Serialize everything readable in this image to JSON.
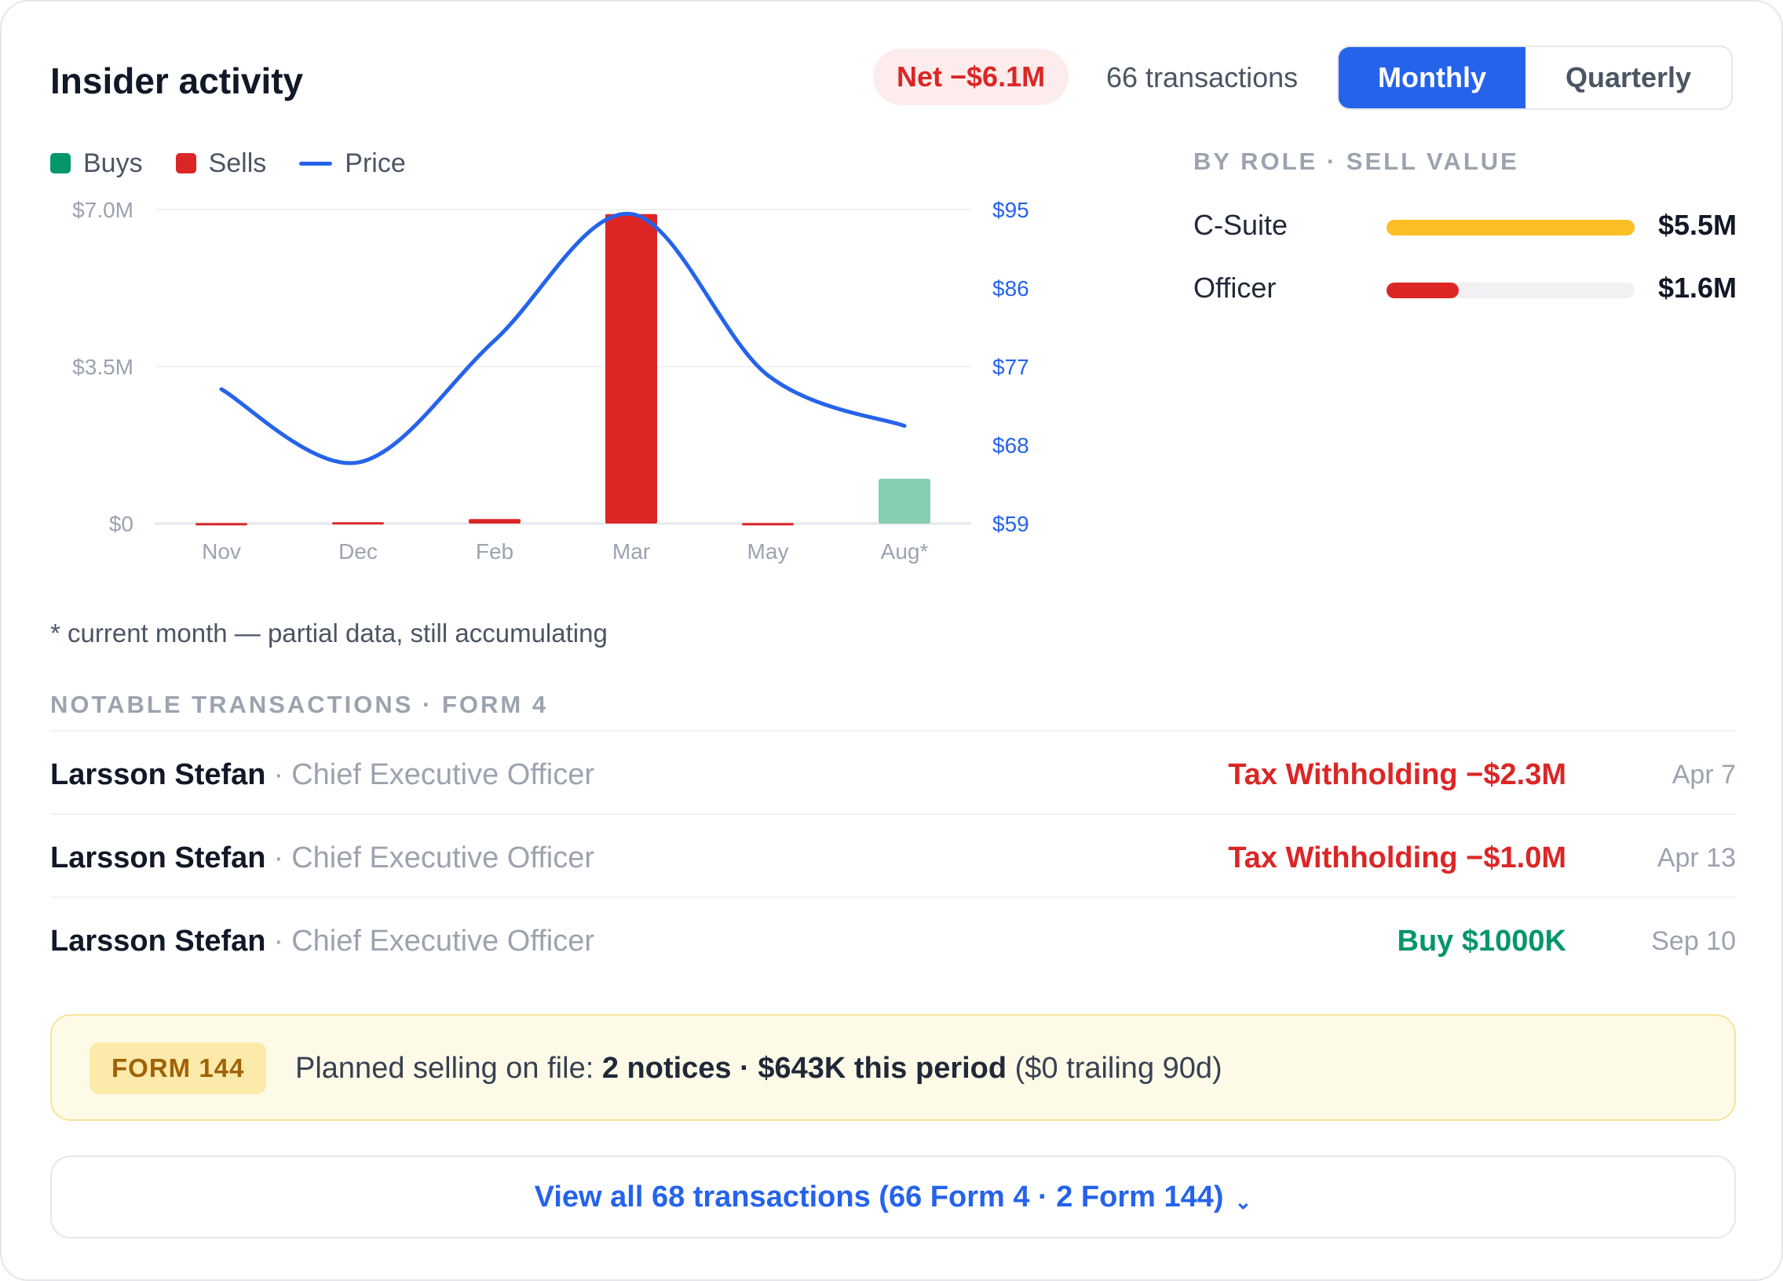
{
  "header": {
    "title": "Insider activity",
    "net_badge": "Net −$6.1M",
    "transactions_count": "66 transactions",
    "toggle": {
      "active": "Monthly",
      "inactive": "Quarterly"
    }
  },
  "legend": {
    "buys": "Buys",
    "sells": "Sells",
    "price": "Price"
  },
  "colors": {
    "buys": "#86cfb3",
    "sells": "#dc2626",
    "price": "#2563eb",
    "c_suite": "#fbbf24",
    "officer": "#dc2626",
    "negative": "#dc2626",
    "positive": "#059669"
  },
  "chart_data": {
    "type": "bar",
    "categories": [
      "Nov",
      "Dec",
      "Feb",
      "Mar",
      "May",
      "Aug*"
    ],
    "series": [
      {
        "name": "Sells",
        "values": [
          0.01,
          0.03,
          0.1,
          6.9,
          0.01,
          0
        ]
      },
      {
        "name": "Buys",
        "values": [
          0,
          0,
          0,
          0,
          0,
          1.0
        ]
      }
    ],
    "price": {
      "name": "Price",
      "values": [
        74.4,
        66.0,
        80.0,
        94.5,
        76.0,
        70.2
      ]
    },
    "y_left": {
      "ticks": [
        "$7.0M",
        "$3.5M",
        "$0"
      ],
      "range": [
        0,
        7.0
      ]
    },
    "y_right": {
      "ticks": [
        "$95",
        "$86",
        "$77",
        "$68",
        "$59"
      ],
      "range": [
        59,
        95
      ]
    },
    "note": "* current month — partial data, still accumulating"
  },
  "by_role": {
    "label": "BY ROLE · SELL VALUE",
    "rows": [
      {
        "name": "C-Suite",
        "value": "$5.5M",
        "fraction": 1.0
      },
      {
        "name": "Officer",
        "value": "$1.6M",
        "fraction": 0.29
      }
    ]
  },
  "notable": {
    "label": "NOTABLE TRANSACTIONS · FORM 4",
    "rows": [
      {
        "name": "Larsson Stefan",
        "sep": "·",
        "role": "Chief Executive Officer",
        "amount": "Tax Withholding −$2.3M",
        "type": "negative",
        "date": "Apr 7"
      },
      {
        "name": "Larsson Stefan",
        "sep": "·",
        "role": "Chief Executive Officer",
        "amount": "Tax Withholding −$1.0M",
        "type": "negative",
        "date": "Apr 13"
      },
      {
        "name": "Larsson Stefan",
        "sep": "·",
        "role": "Chief Executive Officer",
        "amount": "Buy $1000K",
        "type": "positive",
        "date": "Sep 10"
      }
    ]
  },
  "form144": {
    "badge": "FORM 144",
    "prefix": "Planned selling on file: ",
    "bold": "2 notices · $643K this period",
    "suffix": " ($0 trailing 90d)"
  },
  "view_all": {
    "label": "View all 68 transactions (66 Form 4 · 2 Form 144)",
    "chevron": "⌄"
  }
}
